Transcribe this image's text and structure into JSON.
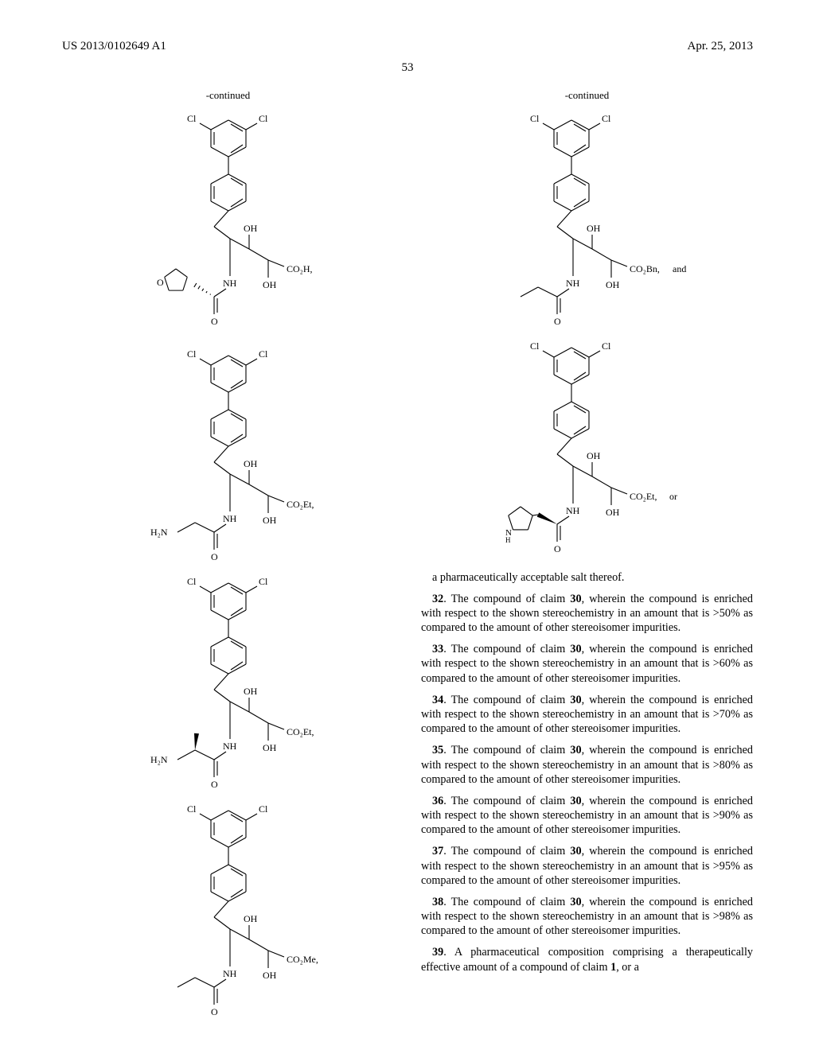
{
  "header": {
    "pub_number": "US 2013/0102649 A1",
    "pub_date": "Apr. 25, 2013",
    "page_number": "53"
  },
  "continued_label": "-continued",
  "structures": {
    "left": [
      {
        "id": "s1",
        "ester": "CO₂H,",
        "amide": "thf",
        "note": ""
      },
      {
        "id": "s2",
        "ester": "CO₂Et,",
        "amide": "gly",
        "note": ""
      },
      {
        "id": "s3",
        "ester": "CO₂Et,",
        "amide": "ala",
        "note": ""
      },
      {
        "id": "s4",
        "ester": "CO₂Me,",
        "amide": "propionyl",
        "note": ""
      }
    ],
    "right": [
      {
        "id": "s5",
        "ester": "CO₂Bn,",
        "amide": "propionyl",
        "note": "and"
      },
      {
        "id": "s6",
        "ester": "CO₂Et,",
        "amide": "pro",
        "note": "or"
      }
    ]
  },
  "labels": {
    "Cl": "Cl",
    "OH": "OH",
    "NH": "NH",
    "NH_under": "N̲H",
    "H2N": "H₂N",
    "O": "O"
  },
  "claims": {
    "lead_out": "a pharmaceutically acceptable salt thereof.",
    "items": [
      {
        "n": "32",
        "ref": "30",
        "pct": ">50%"
      },
      {
        "n": "33",
        "ref": "30",
        "pct": ">60%"
      },
      {
        "n": "34",
        "ref": "30",
        "pct": ">70%"
      },
      {
        "n": "35",
        "ref": "30",
        "pct": ">80%"
      },
      {
        "n": "36",
        "ref": "30",
        "pct": ">90%"
      },
      {
        "n": "37",
        "ref": "30",
        "pct": ">95%"
      },
      {
        "n": "38",
        "ref": "30",
        "pct": ">98%"
      }
    ],
    "claim_template_a": ". The compound of claim ",
    "claim_template_b": ", wherein the compound is enriched with respect to the shown stereochemistry in an amount that is ",
    "claim_template_c": " as compared to the amount of other stereoisomer impurities.",
    "claim39_n": "39",
    "claim39_text": ". A pharmaceutical composition comprising a therapeutically effective amount of a compound of claim ",
    "claim39_ref": "1",
    "claim39_tail": ", or a"
  },
  "style": {
    "stroke": "#000000",
    "stroke_width": 1.1,
    "font_size_atom": 12,
    "font_size_small": 10
  }
}
